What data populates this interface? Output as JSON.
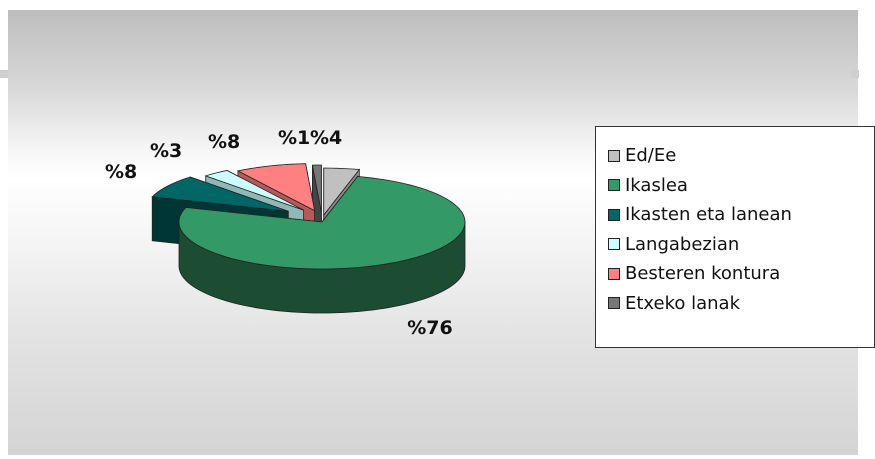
{
  "chart_data": {
    "type": "pie",
    "categories": [
      "Ed/Ee",
      "Ikaslea",
      "Ikasten eta lanean",
      "Langabezian",
      "Besteren kontura",
      "Etxeko lanak"
    ],
    "values": [
      4,
      76,
      8,
      3,
      8,
      1
    ],
    "labels": [
      "%4",
      "%76",
      "%8",
      "%3",
      "%8",
      "%1"
    ],
    "colors": [
      "#c0c0c0",
      "#339966",
      "#006666",
      "#ccffff",
      "#ff8080",
      "#777777"
    ],
    "dark_colors": [
      "#8a8a8a",
      "#1c4d33",
      "#003636",
      "#8fb8b8",
      "#b35a5a",
      "#444444"
    ],
    "legend_position": "right",
    "style": "3d-exploded"
  }
}
